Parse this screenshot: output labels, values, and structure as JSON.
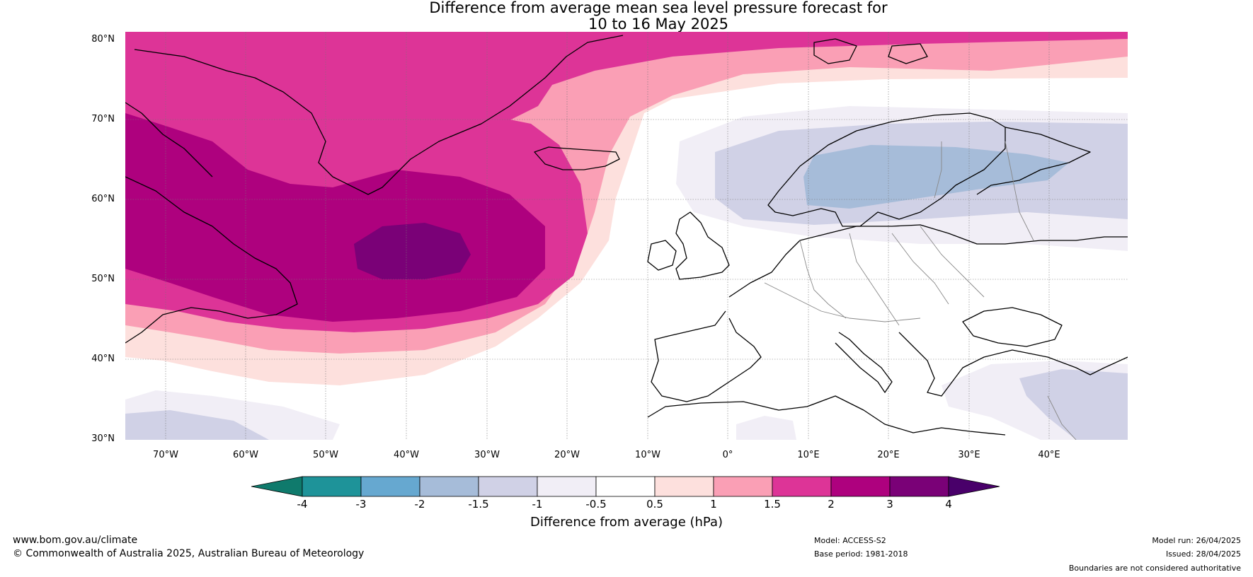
{
  "title": {
    "line1": "Difference from average mean sea level pressure forecast for",
    "line2": "10 to 16 May 2025"
  },
  "map": {
    "lat_labels": [
      "80°N",
      "70°N",
      "60°N",
      "50°N",
      "40°N",
      "30°N"
    ],
    "lon_labels": [
      "70°W",
      "60°W",
      "50°W",
      "40°W",
      "30°W",
      "20°W",
      "10°W",
      "0°",
      "10°E",
      "20°E",
      "30°E",
      "40°E"
    ]
  },
  "colorbar": {
    "tick_labels": [
      "-4",
      "-3",
      "-2",
      "-1.5",
      "-1",
      "-0.5",
      "0.5",
      "1",
      "1.5",
      "2",
      "3",
      "4"
    ],
    "colors": [
      "#0f7a6c",
      "#1e9399",
      "#66a8d0",
      "#a6bcd9",
      "#d0d1e6",
      "#f1eef6",
      "#ffffff",
      "#fde0dd",
      "#fa9fb5",
      "#dd3497",
      "#ae017e",
      "#7a0177",
      "#49006a"
    ],
    "label": "Difference from average (hPa)"
  },
  "footer": {
    "website": "www.bom.gov.au/climate",
    "copyright": "© Commonwealth of Australia 2025, Australian Bureau of Meteorology",
    "model": "Model: ACCESS-S2",
    "base_period": "Base period: 1981-2018",
    "model_run": "Model run: 26/04/2025",
    "issued": "Issued: 28/04/2025",
    "disclaimer": "Boundaries are not considered authoritative"
  }
}
